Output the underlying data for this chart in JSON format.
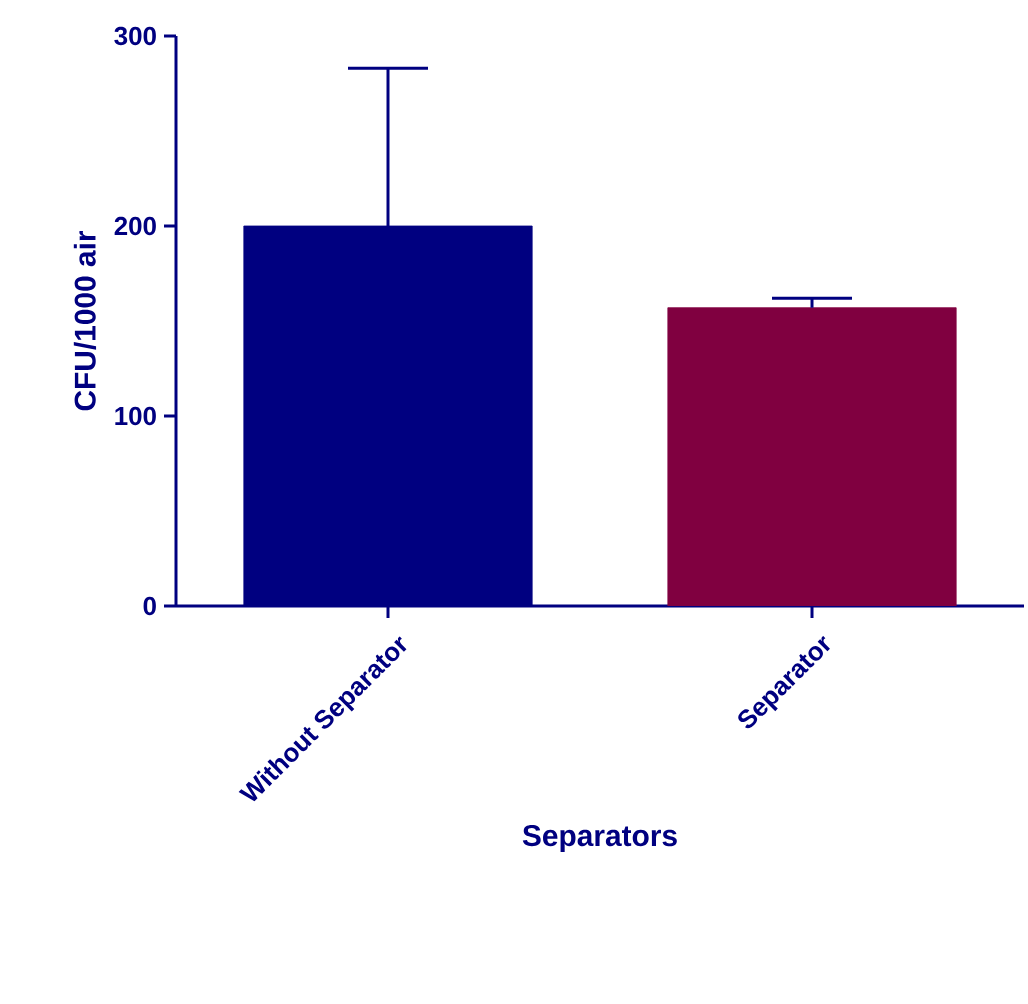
{
  "chart_data": {
    "type": "bar",
    "xlabel": "Separators",
    "ylabel": "CFU/1000 air",
    "categories": [
      "Without Separator",
      "Separator"
    ],
    "values": [
      200,
      157
    ],
    "colors": [
      "#000080",
      "#800040"
    ],
    "errors": [
      [
        200,
        283
      ],
      [
        157,
        162
      ]
    ],
    "ylim": [
      0,
      300
    ],
    "yticks": [
      0,
      100,
      200,
      300
    ],
    "grid": false
  }
}
